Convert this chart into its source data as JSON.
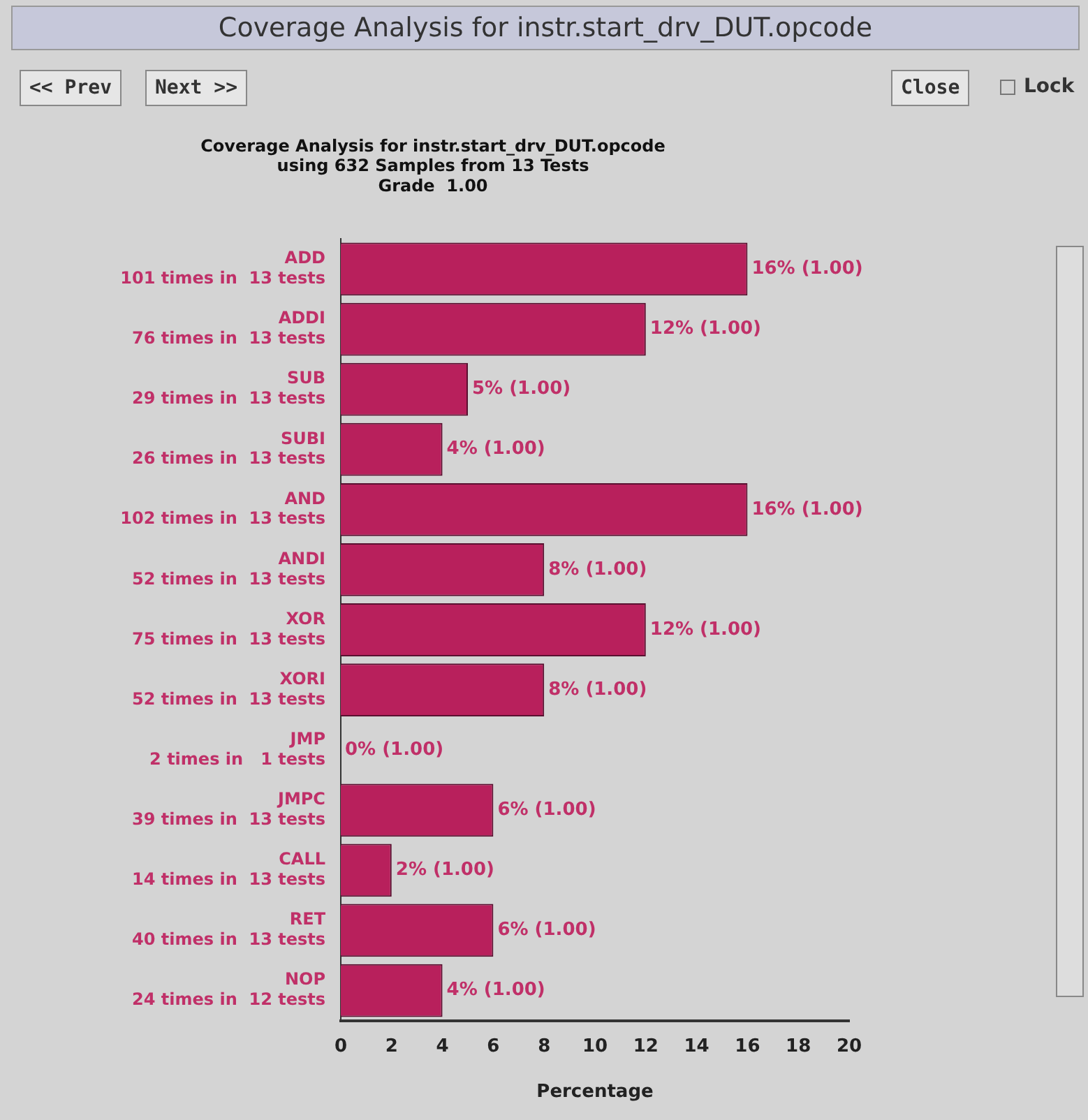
{
  "chart_data": {
    "type": "bar",
    "orientation": "horizontal",
    "title": "Coverage Analysis for instr.start_drv_DUT.opcode",
    "subtitle": "using 632 Samples from 13 Tests\nGrade  1.00",
    "xlabel": "Percentage",
    "categories": [
      "ADD\n101 times in  13 tests",
      "ADDI\n76 times in  13 tests",
      "SUB\n29 times in  13 tests",
      "SUBI\n26 times in  13 tests",
      "AND\n102 times in  13 tests",
      "ANDI\n52 times in  13 tests",
      "XOR\n75 times in  13 tests",
      "XORI\n52 times in  13 tests",
      "JMP\n2 times in   1 tests",
      "JMPC\n39 times in  13 tests",
      "CALL\n14 times in  13 tests",
      "RET\n40 times in  13 tests",
      "NOP\n24 times in  12 tests"
    ],
    "values": [
      16,
      12,
      5,
      4,
      16,
      8,
      12,
      8,
      0,
      6,
      2,
      6,
      4
    ],
    "value_labels": [
      "16% (1.00)",
      "12% (1.00)",
      "5% (1.00)",
      "4% (1.00)",
      "16% (1.00)",
      "8% (1.00)",
      "12% (1.00)",
      "8% (1.00)",
      "0% (1.00)",
      "6% (1.00)",
      "2% (1.00)",
      "6% (1.00)",
      "4% (1.00)"
    ],
    "color": "#b8205c",
    "xlim": [
      0,
      20
    ],
    "xticks": [
      0,
      2,
      4,
      6,
      8,
      10,
      12,
      14,
      16,
      18,
      20
    ],
    "grid": false,
    "legend": false,
    "annotations": [
      "Coverage Analysis for instr.start_drv_DUT.opcode",
      "<< Prev",
      "Next >>",
      "Close",
      "Lock"
    ]
  }
}
